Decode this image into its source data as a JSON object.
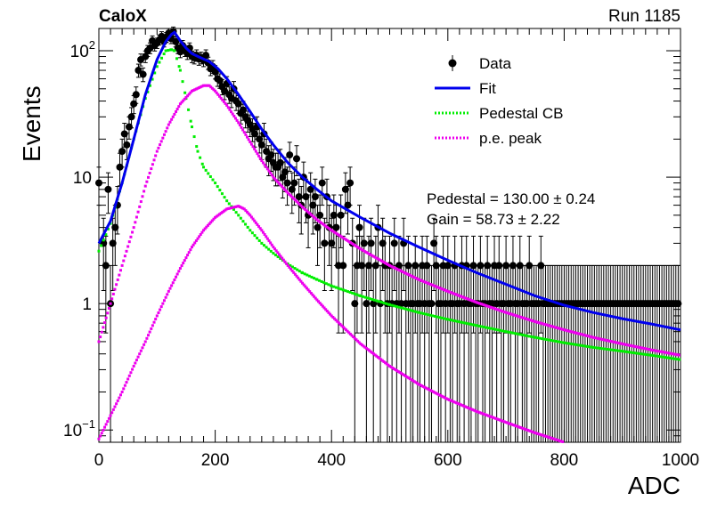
{
  "header": {
    "experiment": "CaloX",
    "run": "Run 1185"
  },
  "chart_data": {
    "type": "line",
    "xlabel": "ADC",
    "ylabel": "Events",
    "xlim": [
      0,
      1000
    ],
    "ylim": [
      0.08,
      150
    ],
    "yscale": "log",
    "x_ticks": [
      "0",
      "200",
      "400",
      "600",
      "800",
      "1000"
    ],
    "y_ticks": [
      {
        "value": 100,
        "base": "10",
        "exp": "2"
      },
      {
        "value": 10,
        "base": "10",
        "exp": ""
      },
      {
        "value": 1,
        "base": "1",
        "exp": ""
      },
      {
        "value": 0.1,
        "base": "10",
        "exp": "−1"
      }
    ],
    "legend_position": "top-right",
    "legend": [
      {
        "label": "Data",
        "style": "marker"
      },
      {
        "label": "Fit",
        "style": "solid"
      },
      {
        "label": "Pedestal CB",
        "style": "dotted-green"
      },
      {
        "label": "p.e. peak",
        "style": "dotted-magenta"
      }
    ],
    "annotations": [
      "Pedestal = 130.00 ± 0.24",
      "Gain = 58.73 ± 2.22"
    ],
    "colors": {
      "data": "#000000",
      "fit": "#0000ee",
      "pedestal": "#00ee00",
      "pe": "#ee00ee"
    },
    "data_points": [
      [
        0,
        9
      ],
      [
        8,
        3
      ],
      [
        12,
        2
      ],
      [
        16,
        8
      ],
      [
        20,
        1
      ],
      [
        24,
        3
      ],
      [
        28,
        4
      ],
      [
        32,
        6
      ],
      [
        36,
        12
      ],
      [
        40,
        16
      ],
      [
        44,
        22
      ],
      [
        48,
        18
      ],
      [
        52,
        25
      ],
      [
        56,
        30
      ],
      [
        60,
        38
      ],
      [
        64,
        45
      ],
      [
        68,
        70
      ],
      [
        72,
        85
      ],
      [
        76,
        65
      ],
      [
        80,
        90
      ],
      [
        84,
        100
      ],
      [
        88,
        105
      ],
      [
        92,
        120
      ],
      [
        96,
        110
      ],
      [
        100,
        115
      ],
      [
        104,
        122
      ],
      [
        108,
        130
      ],
      [
        112,
        118
      ],
      [
        116,
        128
      ],
      [
        120,
        138
      ],
      [
        124,
        125
      ],
      [
        128,
        142
      ],
      [
        132,
        118
      ],
      [
        136,
        105
      ],
      [
        140,
        98
      ],
      [
        144,
        110
      ],
      [
        148,
        100
      ],
      [
        152,
        95
      ],
      [
        156,
        105
      ],
      [
        160,
        90
      ],
      [
        164,
        88
      ],
      [
        168,
        92
      ],
      [
        172,
        86
      ],
      [
        176,
        88
      ],
      [
        180,
        84
      ],
      [
        184,
        92
      ],
      [
        188,
        80
      ],
      [
        192,
        72
      ],
      [
        196,
        75
      ],
      [
        200,
        68
      ],
      [
        204,
        60
      ],
      [
        208,
        58
      ],
      [
        212,
        52
      ],
      [
        216,
        48
      ],
      [
        220,
        55
      ],
      [
        224,
        45
      ],
      [
        228,
        42
      ],
      [
        232,
        50
      ],
      [
        236,
        40
      ],
      [
        240,
        38
      ],
      [
        244,
        32
      ],
      [
        248,
        34
      ],
      [
        252,
        30
      ],
      [
        256,
        28
      ],
      [
        260,
        26
      ],
      [
        264,
        24
      ],
      [
        268,
        22
      ],
      [
        272,
        25
      ],
      [
        276,
        20
      ],
      [
        280,
        18
      ],
      [
        284,
        22
      ],
      [
        288,
        16
      ],
      [
        292,
        14
      ],
      [
        296,
        15
      ],
      [
        300,
        13
      ],
      [
        304,
        12
      ],
      [
        308,
        12
      ],
      [
        312,
        13
      ],
      [
        316,
        10
      ],
      [
        320,
        11
      ],
      [
        324,
        9
      ],
      [
        328,
        15
      ],
      [
        332,
        8
      ],
      [
        336,
        9
      ],
      [
        340,
        14
      ],
      [
        344,
        7
      ],
      [
        348,
        6
      ],
      [
        352,
        10
      ],
      [
        356,
        7
      ],
      [
        360,
        5
      ],
      [
        364,
        8
      ],
      [
        368,
        6
      ],
      [
        372,
        7
      ],
      [
        376,
        4
      ],
      [
        380,
        5
      ],
      [
        384,
        9
      ],
      [
        388,
        3
      ],
      [
        392,
        7
      ],
      [
        396,
        4
      ],
      [
        400,
        3
      ],
      [
        404,
        5
      ],
      [
        408,
        4
      ],
      [
        412,
        2
      ],
      [
        416,
        5
      ],
      [
        420,
        2
      ],
      [
        424,
        8
      ],
      [
        428,
        6
      ],
      [
        432,
        9
      ],
      [
        436,
        3
      ],
      [
        440,
        1
      ],
      [
        444,
        2
      ],
      [
        448,
        4
      ],
      [
        452,
        2
      ],
      [
        456,
        3
      ],
      [
        460,
        1
      ],
      [
        464,
        2
      ],
      [
        468,
        3
      ],
      [
        472,
        1
      ],
      [
        476,
        2
      ],
      [
        480,
        4
      ],
      [
        484,
        1
      ],
      [
        488,
        3
      ],
      [
        492,
        2
      ],
      [
        496,
        1
      ],
      [
        500,
        2
      ],
      [
        504,
        1
      ],
      [
        508,
        3
      ],
      [
        512,
        1
      ],
      [
        516,
        2
      ],
      [
        520,
        1
      ],
      [
        524,
        3
      ],
      [
        528,
        1
      ],
      [
        532,
        2
      ],
      [
        536,
        1
      ],
      [
        540,
        1
      ],
      [
        544,
        2
      ],
      [
        548,
        1
      ],
      [
        552,
        1
      ],
      [
        556,
        2
      ],
      [
        560,
        1
      ],
      [
        564,
        2
      ],
      [
        568,
        1
      ],
      [
        572,
        1
      ],
      [
        576,
        3
      ],
      [
        580,
        2
      ],
      [
        584,
        1
      ],
      [
        588,
        1
      ],
      [
        592,
        2
      ],
      [
        596,
        1
      ],
      [
        600,
        2
      ],
      [
        604,
        1
      ],
      [
        608,
        1
      ],
      [
        612,
        2
      ],
      [
        616,
        1
      ],
      [
        620,
        1
      ],
      [
        624,
        2
      ],
      [
        628,
        1
      ],
      [
        632,
        2
      ],
      [
        636,
        1
      ],
      [
        640,
        1
      ],
      [
        644,
        2
      ],
      [
        648,
        1
      ],
      [
        652,
        1
      ],
      [
        656,
        2
      ],
      [
        660,
        1
      ],
      [
        664,
        1
      ],
      [
        668,
        2
      ],
      [
        672,
        1
      ],
      [
        676,
        1
      ],
      [
        680,
        2
      ],
      [
        684,
        1
      ],
      [
        688,
        2
      ],
      [
        692,
        1
      ],
      [
        696,
        1
      ],
      [
        700,
        2
      ],
      [
        704,
        1
      ],
      [
        708,
        1
      ],
      [
        712,
        2
      ],
      [
        716,
        1
      ],
      [
        720,
        1
      ],
      [
        724,
        2
      ],
      [
        728,
        1
      ],
      [
        732,
        1
      ],
      [
        736,
        1
      ],
      [
        740,
        2
      ],
      [
        744,
        1
      ],
      [
        748,
        1
      ],
      [
        752,
        1
      ],
      [
        756,
        1
      ],
      [
        760,
        2
      ],
      [
        764,
        1
      ],
      [
        768,
        1
      ],
      [
        772,
        1
      ],
      [
        776,
        1
      ],
      [
        780,
        1
      ],
      [
        784,
        1
      ],
      [
        788,
        1
      ],
      [
        792,
        1
      ],
      [
        796,
        1
      ],
      [
        800,
        1
      ],
      [
        804,
        1
      ],
      [
        808,
        1
      ],
      [
        812,
        1
      ],
      [
        816,
        1
      ],
      [
        820,
        1
      ],
      [
        824,
        1
      ],
      [
        828,
        1
      ],
      [
        832,
        1
      ],
      [
        836,
        1
      ],
      [
        840,
        1
      ],
      [
        844,
        1
      ],
      [
        848,
        1
      ],
      [
        852,
        1
      ],
      [
        856,
        1
      ],
      [
        860,
        1
      ],
      [
        864,
        1
      ],
      [
        868,
        1
      ],
      [
        872,
        1
      ],
      [
        876,
        1
      ],
      [
        880,
        1
      ],
      [
        884,
        1
      ],
      [
        888,
        1
      ],
      [
        892,
        1
      ],
      [
        896,
        1
      ],
      [
        900,
        1
      ],
      [
        904,
        1
      ],
      [
        908,
        1
      ],
      [
        912,
        1
      ],
      [
        916,
        1
      ],
      [
        920,
        1
      ],
      [
        924,
        1
      ],
      [
        928,
        1
      ],
      [
        932,
        1
      ],
      [
        936,
        1
      ],
      [
        940,
        1
      ],
      [
        944,
        1
      ],
      [
        948,
        1
      ],
      [
        952,
        1
      ],
      [
        956,
        1
      ],
      [
        960,
        1
      ],
      [
        964,
        1
      ],
      [
        968,
        1
      ],
      [
        972,
        1
      ],
      [
        976,
        1
      ],
      [
        980,
        1
      ],
      [
        984,
        1
      ],
      [
        988,
        1
      ],
      [
        992,
        1
      ],
      [
        996,
        1
      ]
    ],
    "fit_curve": [
      [
        0,
        3.0
      ],
      [
        20,
        4.5
      ],
      [
        40,
        9
      ],
      [
        60,
        20
      ],
      [
        80,
        45
      ],
      [
        100,
        85
      ],
      [
        115,
        118
      ],
      [
        125,
        135
      ],
      [
        130,
        140
      ],
      [
        140,
        120
      ],
      [
        150,
        105
      ],
      [
        160,
        95
      ],
      [
        175,
        88
      ],
      [
        190,
        82
      ],
      [
        205,
        72
      ],
      [
        220,
        60
      ],
      [
        240,
        45
      ],
      [
        260,
        33
      ],
      [
        280,
        24
      ],
      [
        300,
        18
      ],
      [
        325,
        13
      ],
      [
        350,
        10
      ],
      [
        375,
        8
      ],
      [
        400,
        6.5
      ],
      [
        450,
        4.8
      ],
      [
        500,
        3.6
      ],
      [
        550,
        2.8
      ],
      [
        600,
        2.2
      ],
      [
        650,
        1.75
      ],
      [
        700,
        1.42
      ],
      [
        750,
        1.15
      ],
      [
        800,
        0.97
      ],
      [
        850,
        0.85
      ],
      [
        900,
        0.76
      ],
      [
        950,
        0.69
      ],
      [
        1000,
        0.62
      ]
    ],
    "pedestal_cb": [
      [
        0,
        2.6
      ],
      [
        20,
        4.3
      ],
      [
        40,
        9
      ],
      [
        60,
        20
      ],
      [
        80,
        42
      ],
      [
        100,
        75
      ],
      [
        115,
        100
      ],
      [
        125,
        102
      ],
      [
        130,
        100
      ],
      [
        140,
        70
      ],
      [
        150,
        42
      ],
      [
        160,
        25
      ],
      [
        170,
        16
      ],
      [
        180,
        12
      ],
      [
        200,
        9
      ],
      [
        220,
        6.5
      ],
      [
        240,
        5
      ],
      [
        260,
        3.8
      ],
      [
        280,
        3.0
      ],
      [
        300,
        2.5
      ],
      [
        325,
        2.05
      ],
      [
        350,
        1.75
      ],
      [
        375,
        1.55
      ],
      [
        400,
        1.38
      ],
      [
        450,
        1.15
      ],
      [
        500,
        0.98
      ],
      [
        550,
        0.85
      ],
      [
        600,
        0.75
      ],
      [
        650,
        0.67
      ],
      [
        700,
        0.6
      ],
      [
        750,
        0.54
      ],
      [
        800,
        0.49
      ],
      [
        850,
        0.45
      ],
      [
        900,
        0.42
      ],
      [
        950,
        0.39
      ],
      [
        1000,
        0.36
      ]
    ],
    "pe_peak_1": [
      [
        0,
        0.5
      ],
      [
        20,
        1.0
      ],
      [
        40,
        2.0
      ],
      [
        60,
        4.0
      ],
      [
        80,
        8.5
      ],
      [
        100,
        16
      ],
      [
        120,
        26
      ],
      [
        140,
        38
      ],
      [
        160,
        48
      ],
      [
        180,
        53
      ],
      [
        190,
        53
      ],
      [
        200,
        48
      ],
      [
        220,
        37
      ],
      [
        240,
        27
      ],
      [
        260,
        19
      ],
      [
        280,
        13.5
      ],
      [
        300,
        10
      ],
      [
        325,
        7.5
      ],
      [
        350,
        5.8
      ],
      [
        375,
        4.6
      ],
      [
        400,
        3.8
      ],
      [
        450,
        2.7
      ],
      [
        500,
        2.0
      ],
      [
        550,
        1.55
      ],
      [
        600,
        1.25
      ],
      [
        650,
        1.02
      ],
      [
        700,
        0.85
      ],
      [
        750,
        0.72
      ],
      [
        800,
        0.62
      ],
      [
        850,
        0.54
      ],
      [
        900,
        0.48
      ],
      [
        950,
        0.43
      ],
      [
        1000,
        0.39
      ]
    ],
    "pe_peak_2": [
      [
        0,
        0.085
      ],
      [
        20,
        0.13
      ],
      [
        40,
        0.2
      ],
      [
        60,
        0.32
      ],
      [
        80,
        0.5
      ],
      [
        100,
        0.8
      ],
      [
        120,
        1.25
      ],
      [
        140,
        1.9
      ],
      [
        160,
        2.8
      ],
      [
        180,
        3.8
      ],
      [
        200,
        4.8
      ],
      [
        220,
        5.6
      ],
      [
        240,
        5.9
      ],
      [
        250,
        5.6
      ],
      [
        260,
        5.0
      ],
      [
        280,
        3.8
      ],
      [
        300,
        2.8
      ],
      [
        325,
        2.0
      ],
      [
        350,
        1.45
      ],
      [
        375,
        1.07
      ],
      [
        400,
        0.8
      ],
      [
        450,
        0.48
      ],
      [
        500,
        0.32
      ],
      [
        550,
        0.23
      ],
      [
        600,
        0.175
      ],
      [
        650,
        0.14
      ],
      [
        700,
        0.115
      ],
      [
        750,
        0.095
      ],
      [
        800,
        0.08
      ]
    ]
  }
}
